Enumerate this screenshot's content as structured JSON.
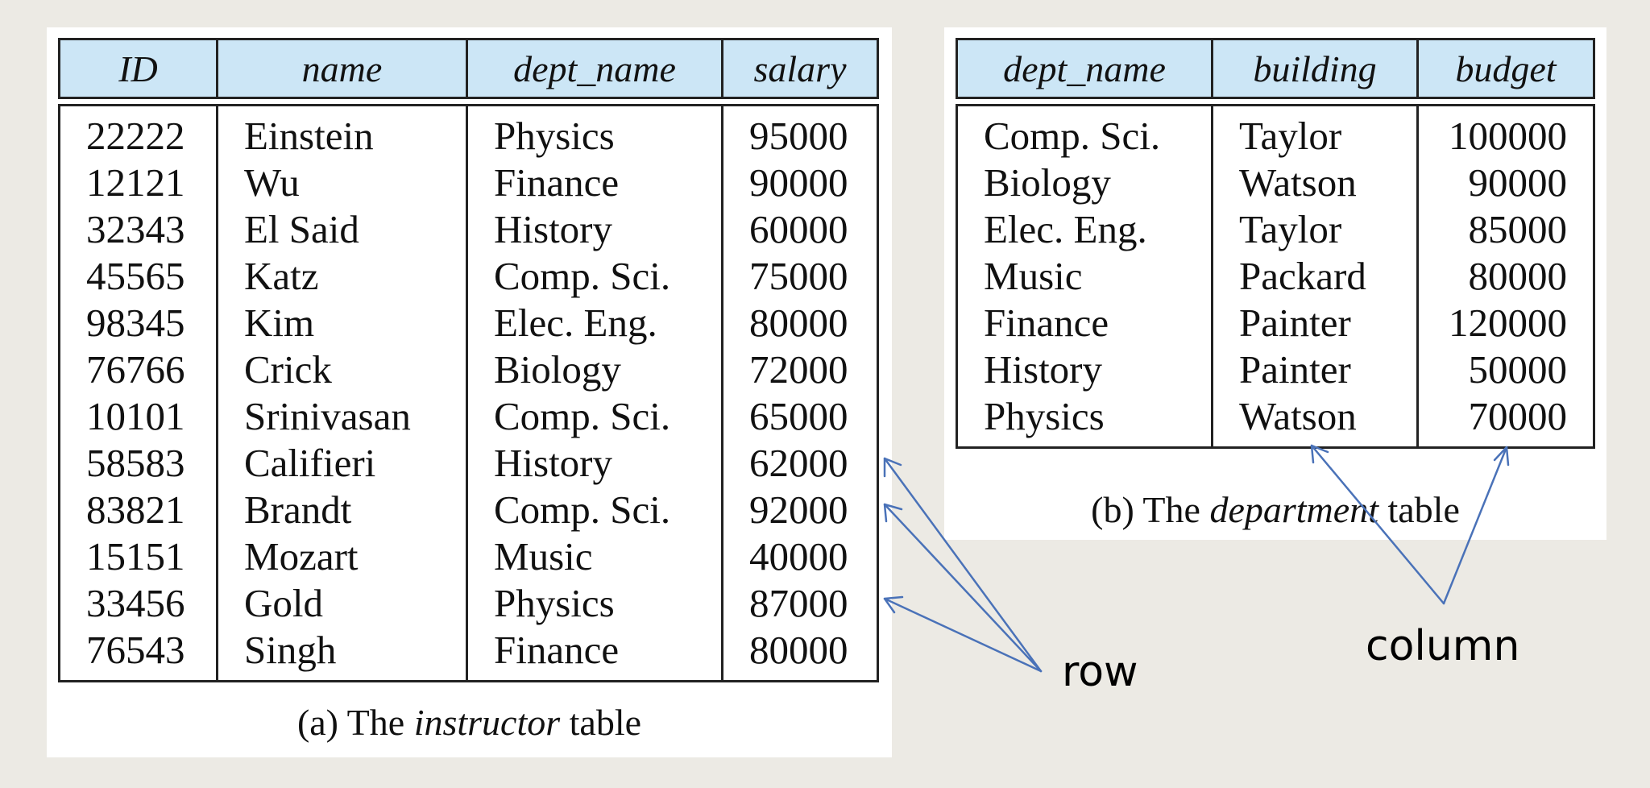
{
  "instructor": {
    "columns": [
      "ID",
      "name",
      "dept_name",
      "salary"
    ],
    "rows": [
      [
        "22222",
        "Einstein",
        "Physics",
        "95000"
      ],
      [
        "12121",
        "Wu",
        "Finance",
        "90000"
      ],
      [
        "32343",
        "El Said",
        "History",
        "60000"
      ],
      [
        "45565",
        "Katz",
        "Comp. Sci.",
        "75000"
      ],
      [
        "98345",
        "Kim",
        "Elec. Eng.",
        "80000"
      ],
      [
        "76766",
        "Crick",
        "Biology",
        "72000"
      ],
      [
        "10101",
        "Srinivasan",
        "Comp. Sci.",
        "65000"
      ],
      [
        "58583",
        "Califieri",
        "History",
        "62000"
      ],
      [
        "83821",
        "Brandt",
        "Comp. Sci.",
        "92000"
      ],
      [
        "15151",
        "Mozart",
        "Music",
        "40000"
      ],
      [
        "33456",
        "Gold",
        "Physics",
        "87000"
      ],
      [
        "76543",
        "Singh",
        "Finance",
        "80000"
      ]
    ],
    "caption": {
      "prefix": "(a) The ",
      "italic": "instructor",
      "suffix": " table"
    }
  },
  "department": {
    "columns": [
      "dept_name",
      "building",
      "budget"
    ],
    "rows": [
      [
        "Comp. Sci.",
        "Taylor",
        "100000"
      ],
      [
        "Biology",
        "Watson",
        "90000"
      ],
      [
        "Elec. Eng.",
        "Taylor",
        "85000"
      ],
      [
        "Music",
        "Packard",
        "80000"
      ],
      [
        "Finance",
        "Painter",
        "120000"
      ],
      [
        "History",
        "Painter",
        "50000"
      ],
      [
        "Physics",
        "Watson",
        "70000"
      ]
    ],
    "caption": {
      "prefix": "(b) The ",
      "italic": "department",
      "suffix": " table"
    }
  },
  "annotations": {
    "row_label": "row",
    "column_label": "column",
    "arrow_color": "#4A72B8"
  },
  "colors": {
    "header_fill": "#CCE6F6",
    "background": "#ECEAE4"
  }
}
